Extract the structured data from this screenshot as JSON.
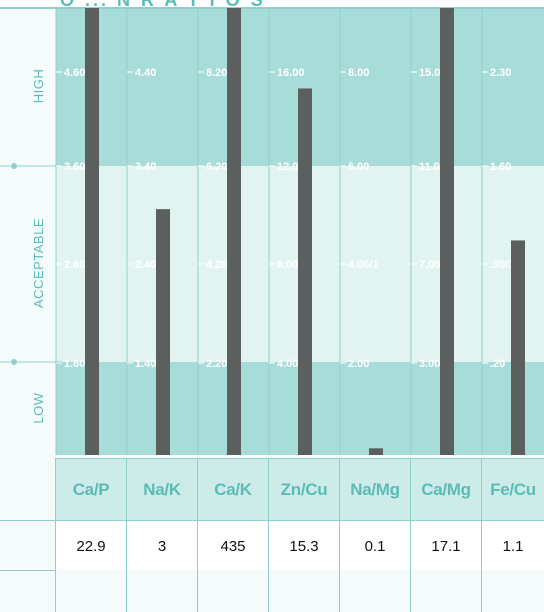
{
  "chart_data": {
    "type": "bar",
    "header_partial": "O  ...  N  R A T I O S",
    "zones": [
      "HIGH",
      "ACCEPTABLE",
      "LOW"
    ],
    "categories": [
      "Ca/P",
      "Na/K",
      "Ca/K",
      "Zn/Cu",
      "Na/Mg",
      "Ca/Mg",
      "Fe/Cu"
    ],
    "values": [
      "22.9",
      "3",
      "435",
      "15.3",
      "0.1",
      "17.1",
      "1.1"
    ],
    "bar_heights_relative": [
      1.0,
      0.55,
      1.0,
      0.82,
      0.015,
      1.0,
      0.48
    ],
    "reference_rows": [
      [
        "4.60",
        "4.40",
        "8.20",
        "16.00",
        "8.00",
        "15.00",
        "2.30"
      ],
      [
        "3.60",
        "3.40",
        "6.20",
        "12.00",
        "6.00",
        "11.00",
        "1.60"
      ],
      [
        "2.60/1",
        "2.40/1",
        "4.20/1",
        "8.00/1",
        "4.00/1",
        "7.00/1",
        ".90/1"
      ],
      [
        "1.60",
        "1.40",
        "2.20",
        "4.00",
        "2.00",
        "3.00",
        ".20"
      ]
    ],
    "colors": {
      "zone_dark": "#a7dcd8",
      "zone_light": "#e2f4f2",
      "grid": "#8fd0cc",
      "bar": "#5b5f5e",
      "label_text": "#5bbcb6",
      "ref_text": "#ffffff"
    }
  }
}
